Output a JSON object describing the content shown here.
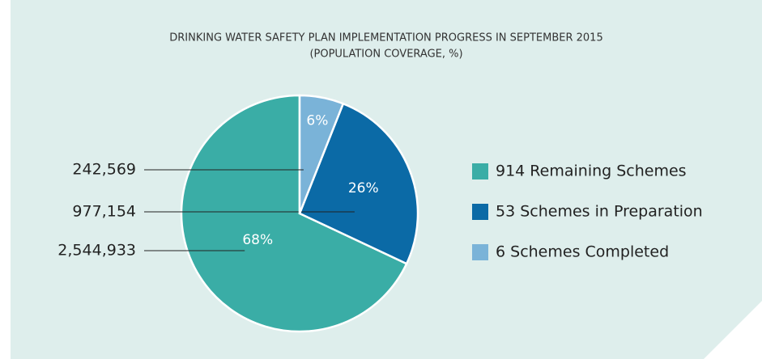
{
  "chart_data": {
    "type": "pie",
    "title": "DRINKING WATER SAFETY PLAN IMPLEMENTATION PROGRESS IN SEPTEMBER 2015",
    "subtitle": "(POPULATION COVERAGE, %)",
    "categories": [
      "914 Remaining Schemes",
      "53 Schemes in Preparation",
      "6 Schemes Completed"
    ],
    "values": [
      68,
      26,
      6
    ],
    "value_labels": [
      "68%",
      "26%",
      "6%"
    ],
    "colors": [
      "#3aada6",
      "#0b6aa6",
      "#7ab3d8"
    ],
    "populations": [
      {
        "value": 2544933,
        "label": "2,544,933"
      },
      {
        "value": 977154,
        "label": "977,154"
      },
      {
        "value": 242569,
        "label": "242,569"
      }
    ],
    "legend": "right"
  }
}
